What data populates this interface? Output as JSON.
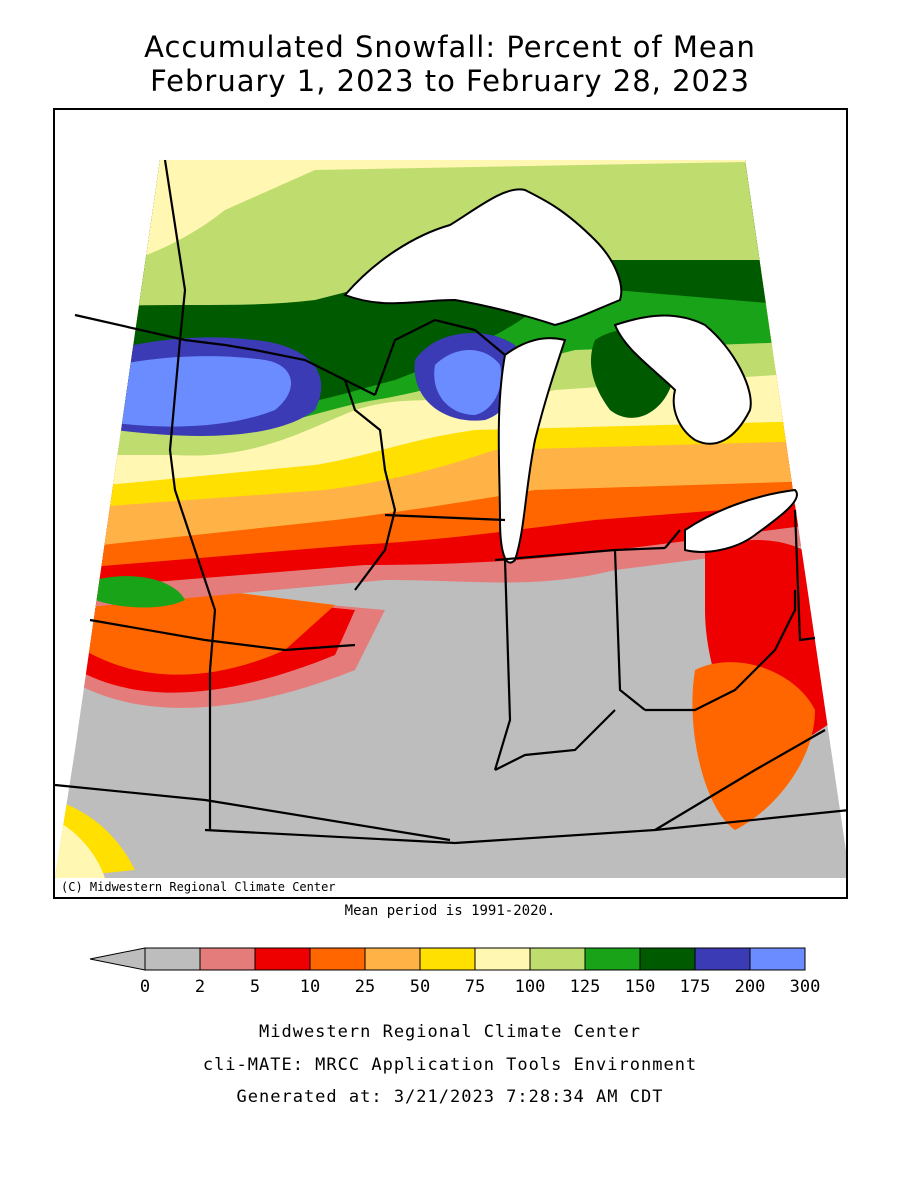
{
  "title": {
    "line1": "Accumulated Snowfall: Percent of Mean",
    "line2": "February 1, 2023 to February 28, 2023"
  },
  "map": {
    "credit": "(C) Midwestern Regional Climate Center",
    "mean_note": "Mean period is 1991-2020."
  },
  "legend": {
    "tick_labels": [
      "0",
      "2",
      "5",
      "10",
      "25",
      "50",
      "75",
      "100",
      "125",
      "150",
      "175",
      "200",
      "300"
    ],
    "colors": [
      "#bdbdbd",
      "#e57c7c",
      "#ee0000",
      "#ff6600",
      "#ffb347",
      "#ffe000",
      "#fff7b2",
      "#bedd6e",
      "#19a319",
      "#005a00",
      "#3b3bb5",
      "#6b8cff"
    ],
    "under_color": "#bdbdbd"
  },
  "footer": {
    "line1": "Midwestern Regional Climate Center",
    "line2": "cli-MATE: MRCC Application Tools Environment",
    "line3": "Generated at: 3/21/2023 7:28:34 AM CDT"
  }
}
